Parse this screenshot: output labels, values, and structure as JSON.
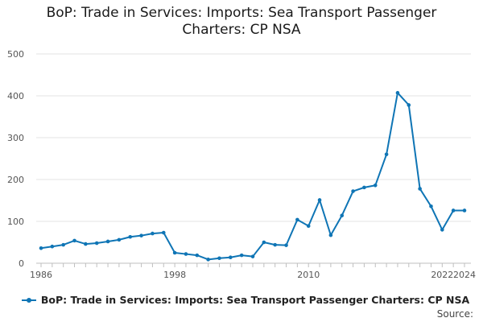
{
  "chart_data": {
    "type": "line",
    "title_line1": "BoP: Trade in Services: Imports: Sea Transport Passenger",
    "title_line2": "Charters: CP NSA",
    "series": [
      {
        "name": "BoP: Trade in Services: Imports: Sea Transport Passenger Charters: CP NSA",
        "color": "#0f75b5",
        "x": [
          1986,
          1987,
          1988,
          1989,
          1990,
          1991,
          1992,
          1993,
          1994,
          1995,
          1996,
          1997,
          1998,
          1999,
          2000,
          2001,
          2002,
          2003,
          2004,
          2005,
          2006,
          2007,
          2008,
          2009,
          2010,
          2011,
          2012,
          2013,
          2014,
          2015,
          2016,
          2017,
          2018,
          2019,
          2020,
          2021,
          2022,
          2023,
          2024
        ],
        "values": [
          36,
          40,
          44,
          54,
          46,
          48,
          52,
          56,
          63,
          66,
          71,
          73,
          25,
          22,
          19,
          9,
          12,
          14,
          19,
          16,
          50,
          44,
          43,
          104,
          89,
          151,
          67,
          114,
          172,
          181,
          186,
          260,
          407,
          378,
          178,
          136,
          80,
          126,
          126
        ]
      }
    ],
    "x_ticks": [
      "1986",
      "1998",
      "2010",
      "2022",
      "2024"
    ],
    "y_ticks": [
      "0",
      "100",
      "200",
      "300",
      "400",
      "500"
    ],
    "ylim": [
      0,
      500
    ],
    "xlim": [
      1986,
      2024
    ],
    "grid": true,
    "legend_position": "bottom",
    "source_label": "Source:"
  }
}
